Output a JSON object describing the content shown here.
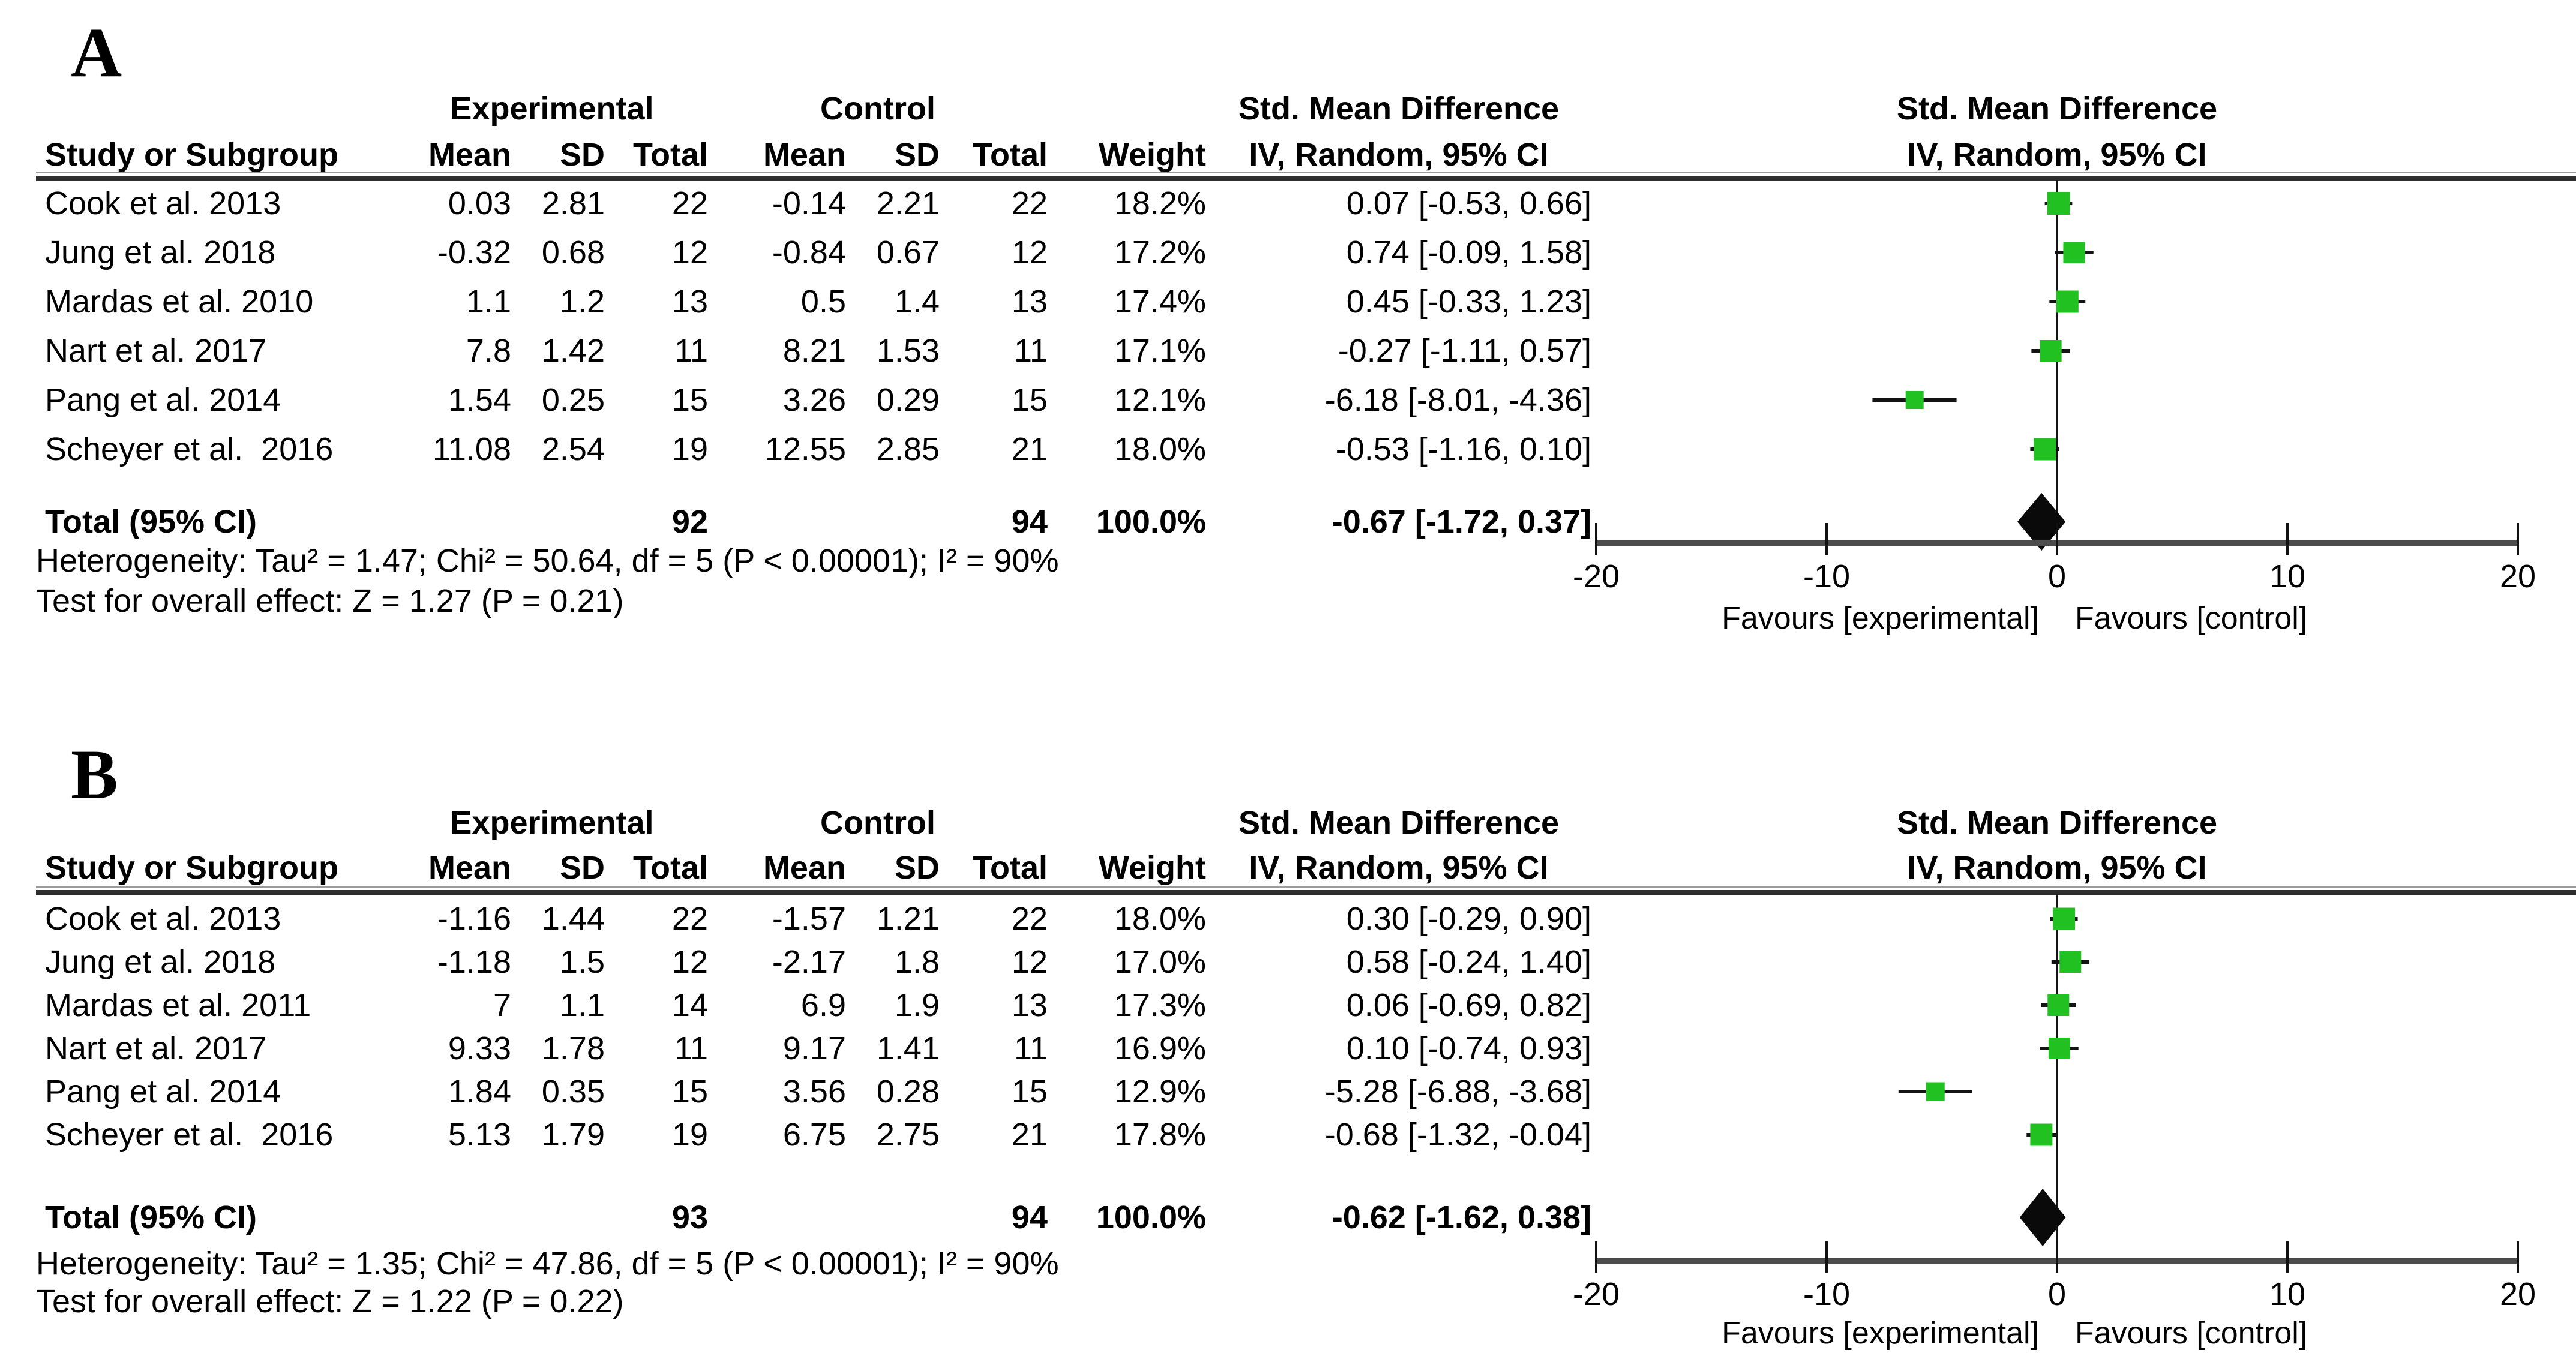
{
  "figure": {
    "description": "Forest plot of standardized mean differences, panels A and B"
  },
  "colors": {
    "marker_green": "#22c122",
    "diamond_black": "#0a0a0a",
    "axis_gray": "#4c4c4c",
    "line_black": "#141414"
  },
  "panels": [
    {
      "id": "a",
      "label": "A",
      "group_headers": {
        "experimental": "Experimental",
        "control": "Control",
        "smd": "Std. Mean Difference"
      },
      "plot_header": {
        "line1": "Std. Mean Difference",
        "line2": "IV, Random, 95% CI"
      },
      "col_headers": [
        "Study or Subgroup",
        "Mean",
        "SD",
        "Total",
        "Mean",
        "SD",
        "Total",
        "Weight",
        "IV, Random, 95% CI"
      ],
      "rows": [
        {
          "study": "Cook et al. 2013",
          "exp_mean": "0.03",
          "exp_sd": "2.81",
          "exp_total": "22",
          "ctl_mean": "-0.14",
          "ctl_sd": "2.21",
          "ctl_total": "22",
          "weight": "18.2%",
          "ci": "0.07 [-0.53, 0.66]"
        },
        {
          "study": "Jung et al. 2018",
          "exp_mean": "-0.32",
          "exp_sd": "0.68",
          "exp_total": "12",
          "ctl_mean": "-0.84",
          "ctl_sd": "0.67",
          "ctl_total": "12",
          "weight": "17.2%",
          "ci": "0.74 [-0.09, 1.58]"
        },
        {
          "study": "Mardas et al. 2010",
          "exp_mean": "1.1",
          "exp_sd": "1.2",
          "exp_total": "13",
          "ctl_mean": "0.5",
          "ctl_sd": "1.4",
          "ctl_total": "13",
          "weight": "17.4%",
          "ci": "0.45 [-0.33, 1.23]"
        },
        {
          "study": "Nart et al. 2017",
          "exp_mean": "7.8",
          "exp_sd": "1.42",
          "exp_total": "11",
          "ctl_mean": "8.21",
          "ctl_sd": "1.53",
          "ctl_total": "11",
          "weight": "17.1%",
          "ci": "-0.27 [-1.11, 0.57]"
        },
        {
          "study": "Pang et al. 2014",
          "exp_mean": "1.54",
          "exp_sd": "0.25",
          "exp_total": "15",
          "ctl_mean": "3.26",
          "ctl_sd": "0.29",
          "ctl_total": "15",
          "weight": "12.1%",
          "ci": "-6.18 [-8.01, -4.36]"
        },
        {
          "study": "Scheyer et al.  2016",
          "exp_mean": "11.08",
          "exp_sd": "2.54",
          "exp_total": "19",
          "ctl_mean": "12.55",
          "ctl_sd": "2.85",
          "ctl_total": "21",
          "weight": "18.0%",
          "ci": "-0.53 [-1.16, 0.10]"
        }
      ],
      "total_row": {
        "study": "Total (95% CI)",
        "exp_total": "92",
        "ctl_total": "94",
        "weight": "100.0%",
        "ci": "-0.67 [-1.72, 0.37]"
      },
      "heterogeneity": "Heterogeneity: Tau² = 1.47; Chi² = 50.64, df = 5 (P < 0.00001); I² = 90%",
      "overall": "Test for overall effect: Z = 1.27 (P = 0.21)"
    },
    {
      "id": "b",
      "label": "B",
      "group_headers": {
        "experimental": "Experimental",
        "control": "Control",
        "smd": "Std. Mean Difference"
      },
      "plot_header": {
        "line1": "Std. Mean Difference",
        "line2": "IV, Random, 95% CI"
      },
      "col_headers": [
        "Study or Subgroup",
        "Mean",
        "SD",
        "Total",
        "Mean",
        "SD",
        "Total",
        "Weight",
        "IV, Random, 95% CI"
      ],
      "rows": [
        {
          "study": "Cook et al. 2013",
          "exp_mean": "-1.16",
          "exp_sd": "1.44",
          "exp_total": "22",
          "ctl_mean": "-1.57",
          "ctl_sd": "1.21",
          "ctl_total": "22",
          "weight": "18.0%",
          "ci": "0.30 [-0.29, 0.90]"
        },
        {
          "study": "Jung et al. 2018",
          "exp_mean": "-1.18",
          "exp_sd": "1.5",
          "exp_total": "12",
          "ctl_mean": "-2.17",
          "ctl_sd": "1.8",
          "ctl_total": "12",
          "weight": "17.0%",
          "ci": "0.58 [-0.24, 1.40]"
        },
        {
          "study": "Mardas et al. 2011",
          "exp_mean": "7",
          "exp_sd": "1.1",
          "exp_total": "14",
          "ctl_mean": "6.9",
          "ctl_sd": "1.9",
          "ctl_total": "13",
          "weight": "17.3%",
          "ci": "0.06 [-0.69, 0.82]"
        },
        {
          "study": "Nart et al. 2017",
          "exp_mean": "9.33",
          "exp_sd": "1.78",
          "exp_total": "11",
          "ctl_mean": "9.17",
          "ctl_sd": "1.41",
          "ctl_total": "11",
          "weight": "16.9%",
          "ci": "0.10 [-0.74, 0.93]"
        },
        {
          "study": "Pang et al. 2014",
          "exp_mean": "1.84",
          "exp_sd": "0.35",
          "exp_total": "15",
          "ctl_mean": "3.56",
          "ctl_sd": "0.28",
          "ctl_total": "15",
          "weight": "12.9%",
          "ci": "-5.28 [-6.88, -3.68]"
        },
        {
          "study": "Scheyer et al.  2016",
          "exp_mean": "5.13",
          "exp_sd": "1.79",
          "exp_total": "19",
          "ctl_mean": "6.75",
          "ctl_sd": "2.75",
          "ctl_total": "21",
          "weight": "17.8%",
          "ci": "-0.68 [-1.32, -0.04]"
        }
      ],
      "total_row": {
        "study": "Total (95% CI)",
        "exp_total": "93",
        "ctl_total": "94",
        "weight": "100.0%",
        "ci": "-0.62 [-1.62, 0.38]"
      },
      "heterogeneity": "Heterogeneity: Tau² = 1.35; Chi² = 47.86, df = 5 (P < 0.00001); I² = 90%",
      "overall": "Test for overall effect: Z = 1.22 (P = 0.22)"
    }
  ],
  "chart_data": [
    {
      "type": "scatter",
      "subtype": "forest-plot",
      "panel": "A",
      "title": "Std. Mean Difference",
      "effect_model": "IV, Random, 95% CI",
      "studies": [
        "Cook et al. 2013",
        "Jung et al. 2018",
        "Mardas et al. 2010",
        "Nart et al. 2017",
        "Pang et al. 2014",
        "Scheyer et al. 2016"
      ],
      "estimates": [
        0.07,
        0.74,
        0.45,
        -0.27,
        -6.18,
        -0.53
      ],
      "ci_low": [
        -0.53,
        -0.09,
        -0.33,
        -1.11,
        -8.01,
        -1.16
      ],
      "ci_high": [
        0.66,
        1.58,
        1.23,
        0.57,
        -4.36,
        0.1
      ],
      "weights_pct": [
        18.2,
        17.2,
        17.4,
        17.1,
        12.1,
        18.0
      ],
      "total": {
        "estimate": -0.67,
        "ci_low": -1.72,
        "ci_high": 0.37,
        "n_experimental": 92,
        "n_control": 94
      },
      "xlim": [
        -20,
        20
      ],
      "xticks": [
        -20,
        -10,
        0,
        10,
        20
      ],
      "xlabel_left": "Favours [experimental]",
      "xlabel_right": "Favours [control]"
    },
    {
      "type": "scatter",
      "subtype": "forest-plot",
      "panel": "B",
      "title": "Std. Mean Difference",
      "effect_model": "IV, Random, 95% CI",
      "studies": [
        "Cook et al. 2013",
        "Jung et al. 2018",
        "Mardas et al. 2011",
        "Nart et al. 2017",
        "Pang et al. 2014",
        "Scheyer et al. 2016"
      ],
      "estimates": [
        0.3,
        0.58,
        0.06,
        0.1,
        -5.28,
        -0.68
      ],
      "ci_low": [
        -0.29,
        -0.24,
        -0.69,
        -0.74,
        -6.88,
        -1.32
      ],
      "ci_high": [
        0.9,
        1.4,
        0.82,
        0.93,
        -3.68,
        -0.04
      ],
      "weights_pct": [
        18.0,
        17.0,
        17.3,
        16.9,
        12.9,
        17.8
      ],
      "total": {
        "estimate": -0.62,
        "ci_low": -1.62,
        "ci_high": 0.38,
        "n_experimental": 93,
        "n_control": 94
      },
      "xlim": [
        -20,
        20
      ],
      "xticks": [
        -20,
        -10,
        0,
        10,
        20
      ],
      "xlabel_left": "Favours [experimental]",
      "xlabel_right": "Favours [control]"
    }
  ]
}
